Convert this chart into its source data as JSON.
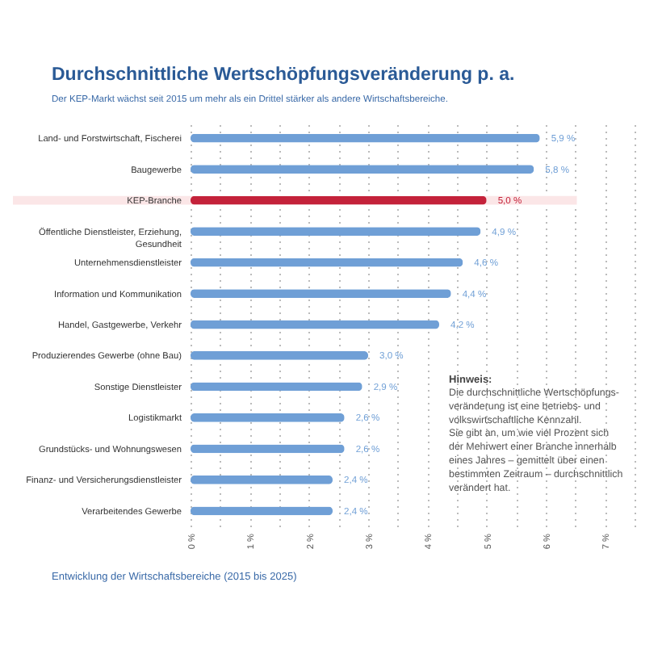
{
  "chart_data": {
    "type": "bar",
    "orientation": "horizontal",
    "title": "Durchschnittliche Wertschöpfungsveränderung p. a.",
    "subtitle": "Der KEP-Markt wächst seit 2015 um mehr als ein Drittel stärker als andere Wirtschaftsbereiche.",
    "categories": [
      "Land- und Forstwirtschaft, Fischerei",
      "Baugewerbe",
      "KEP-Branche",
      "Öffentliche Dienstleister, Erziehung, Gesundheit",
      "Unternehmensdienstleister",
      "Information und Kommunikation",
      "Handel, Gastgewerbe, Verkehr",
      "Produzierendes Gewerbe (ohne Bau)",
      "Sonstige Dienstleister",
      "Logistikmarkt",
      "Grundstücks- und Wohnungswesen",
      "Finanz- und Versicherungsdienstleister",
      "Verarbeitendes Gewerbe"
    ],
    "values": [
      5.9,
      5.8,
      5.0,
      4.9,
      4.6,
      4.4,
      4.2,
      3.0,
      2.9,
      2.6,
      2.6,
      2.4,
      2.4
    ],
    "value_labels": [
      "5,9 %",
      "5,8 %",
      "5,0 %",
      "4,9 %",
      "4,6 %",
      "4,4 %",
      "4,2 %",
      "3,0 %",
      "2,9 %",
      "2,6 %",
      "2,6 %",
      "2,4 %",
      "2,4 %"
    ],
    "colors": [
      "#6f9fd6",
      "#6f9fd6",
      "#c4223a",
      "#6f9fd6",
      "#6f9fd6",
      "#6f9fd6",
      "#6f9fd6",
      "#6f9fd6",
      "#6f9fd6",
      "#6f9fd6",
      "#6f9fd6",
      "#6f9fd6",
      "#6f9fd6"
    ],
    "xlim": [
      0,
      7.5
    ],
    "xticks": [
      {
        "value": 0,
        "label": "0 %"
      },
      {
        "value": 0.5,
        "label": null
      },
      {
        "value": 1,
        "label": "1 %"
      },
      {
        "value": 1.5,
        "label": null
      },
      {
        "value": 2,
        "label": "2 %"
      },
      {
        "value": 2.5,
        "label": null
      },
      {
        "value": 3,
        "label": "3 %"
      },
      {
        "value": 3.5,
        "label": null
      },
      {
        "value": 4,
        "label": "4 %"
      },
      {
        "value": 4.5,
        "label": null
      },
      {
        "value": 5,
        "label": "5 %"
      },
      {
        "value": 5.5,
        "label": null
      },
      {
        "value": 6,
        "label": "6 %"
      },
      {
        "value": 6.5,
        "label": null
      },
      {
        "value": 7,
        "label": "7 %"
      },
      {
        "value": 7.5,
        "label": null
      }
    ],
    "grid": "x",
    "bands": [
      {
        "axis": "y",
        "from": "KEP-Branche",
        "to": "KEP-Branche",
        "color": "#fbe6e7"
      }
    ],
    "annotations": [
      "Hinweis:",
      "Die durchschnittliche Wertschöpfungs-\nveränderung ist eine betriebs- und\nvolkswirtschaftliche Kennzahl.\nSie gibt an, um wie viel Prozent sich\nder Mehrwert einer Branche innerhalb\neines Jahres – gemittelt über einen\nbestimmten Zeitraum – durchschnittlich\nverändert hat.",
      "Entwicklung der Wirtschaftsbereiche (2015 bis 2025)"
    ]
  }
}
